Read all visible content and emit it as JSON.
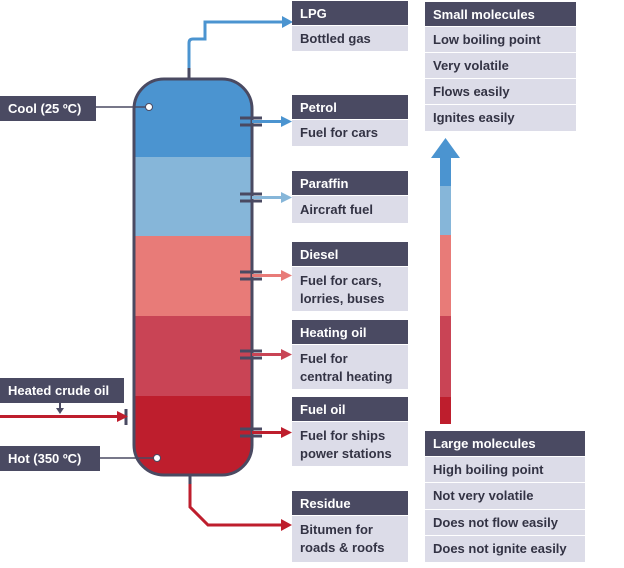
{
  "products": [
    {
      "name": "LPG",
      "use": "Bottled gas"
    },
    {
      "name": "Petrol",
      "use": "Fuel for cars"
    },
    {
      "name": "Paraffin",
      "use": "Aircraft fuel"
    },
    {
      "name": "Diesel",
      "use": "Fuel for cars,\nlorries, buses"
    },
    {
      "name": "Heating oil",
      "use": "Fuel for\ncentral heating"
    },
    {
      "name": "Fuel oil",
      "use": "Fuel for ships\npower stations"
    },
    {
      "name": "Residue",
      "use": "Bitumen for\nroads & roofs"
    }
  ],
  "column": {
    "top_label": "Cool (25 ºC)",
    "bottom_label": "Hot (350 ºC)",
    "input_label": "Heated crude oil"
  },
  "small_molecules": {
    "title": "Small molecules",
    "items": [
      "Low boiling point",
      "Very volatile",
      "Flows easily",
      "Ignites easily"
    ]
  },
  "large_molecules": {
    "title": "Large molecules",
    "items": [
      "High boiling point",
      "Not very volatile",
      "Does not flow easily",
      "Does not ignite easily"
    ]
  },
  "colors": {
    "band_1": "#4b94d0",
    "band_2": "#86b6d9",
    "band_3": "#e87b78",
    "band_4": "#c94455",
    "band_5": "#be1e2d",
    "header_bg": "#4a4a62",
    "cell_bg": "#dcdce8"
  }
}
